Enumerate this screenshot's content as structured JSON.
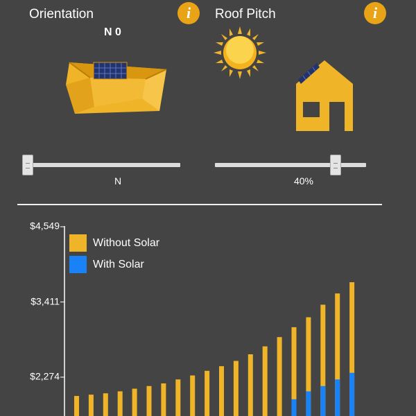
{
  "orientation": {
    "title": "Orientation",
    "readout": "N 0",
    "slider_label": "N",
    "slider_value_fraction": 0.0
  },
  "roof_pitch": {
    "title": "Roof Pitch",
    "slider_label": "40%",
    "slider_value_fraction": 0.8
  },
  "info_icon_glyph": "i",
  "icons": {
    "info": "info-icon",
    "roof": "roof-with-solar-panel-icon",
    "sun": "sun-icon",
    "house": "house-icon"
  },
  "colors": {
    "background": "#444444",
    "accent": "#f0b429",
    "info": "#e8a317",
    "solar_blue": "#1a82f7"
  },
  "chart_data": {
    "type": "bar",
    "yticks": [
      {
        "value": 2274,
        "label": "$2,274"
      },
      {
        "value": 3411,
        "label": "$3,411"
      },
      {
        "value": 4549,
        "label": "$4,549"
      }
    ],
    "legend": {
      "placement": "top-left"
    },
    "series": [
      {
        "name": "Without Solar",
        "color": "#f0b429",
        "values": [
          1990,
          2010,
          2030,
          2060,
          2100,
          2140,
          2180,
          2240,
          2300,
          2370,
          2440,
          2520,
          2620,
          2740,
          2880,
          3030,
          3180,
          3370,
          3540,
          3710
        ]
      },
      {
        "name": "With Solar",
        "color": "#1a82f7",
        "values": [
          0,
          0,
          0,
          0,
          0,
          0,
          0,
          0,
          0,
          0,
          0,
          0,
          0,
          0,
          0,
          1940,
          2060,
          2140,
          2240,
          2340
        ]
      }
    ]
  }
}
